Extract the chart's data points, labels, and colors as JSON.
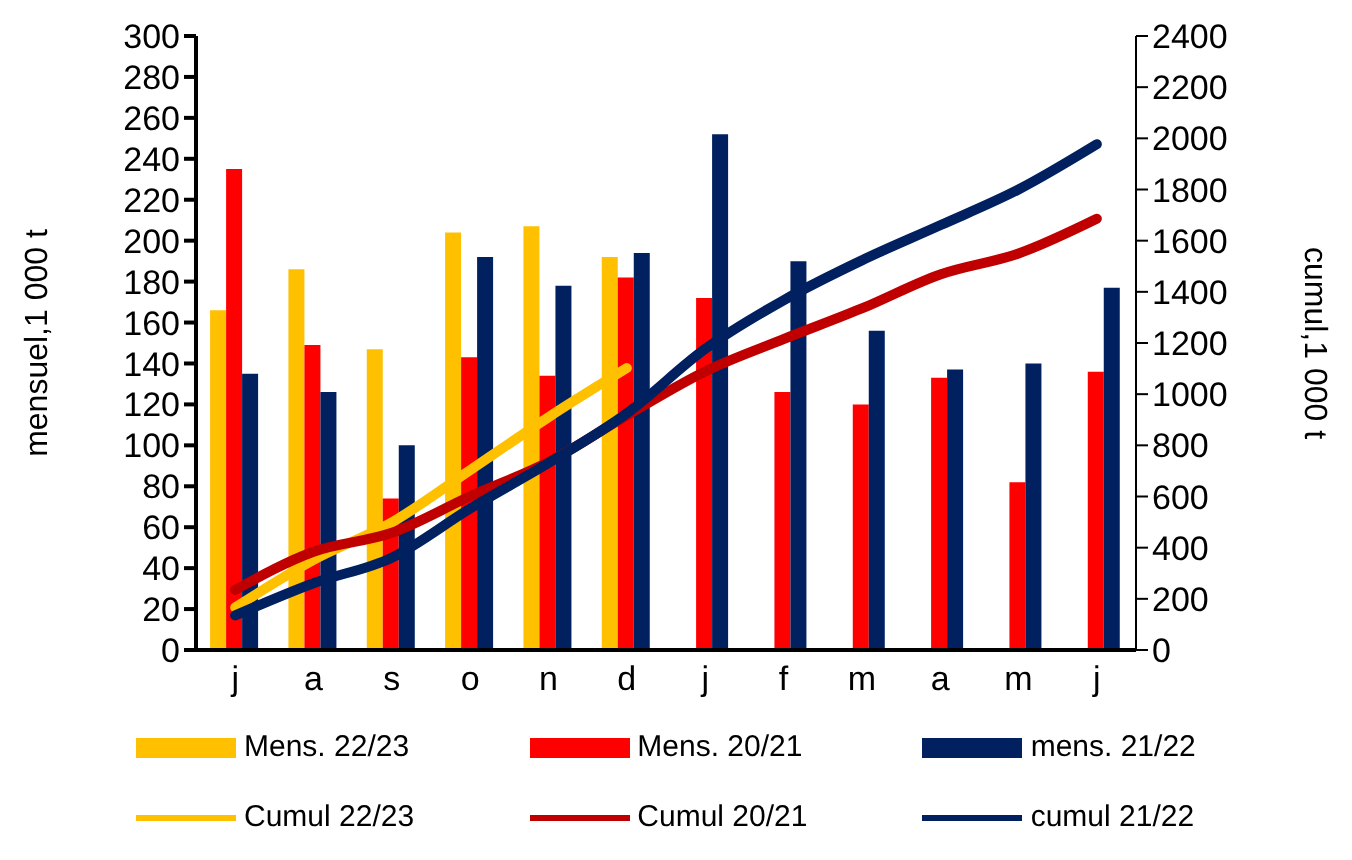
{
  "chart_data": {
    "type": "bar",
    "ylabel": "mensuel,1 000 t",
    "y2label": "cumul,1 000 t",
    "categories": [
      "j",
      "a",
      "s",
      "o",
      "n",
      "d",
      "j",
      "f",
      "m",
      "a",
      "m",
      "j"
    ],
    "series": [
      {
        "name": "Mens. 22/23",
        "color": "#ffc000",
        "values": [
          166,
          186,
          147,
          204,
          207,
          192,
          null,
          null,
          null,
          null,
          null,
          null
        ]
      },
      {
        "name": "Mens. 20/21",
        "color": "#ff0000",
        "values": [
          235,
          149,
          74,
          143,
          134,
          182,
          172,
          126,
          120,
          133,
          82,
          136
        ]
      },
      {
        "name": "mens. 21/22",
        "color": "#002060",
        "values": [
          135,
          126,
          100,
          192,
          178,
          194,
          252,
          190,
          156,
          137,
          140,
          177
        ]
      },
      {
        "name": "Cumul 22/23",
        "type": "line",
        "axis": "y2",
        "color": "#ffc000",
        "values": [
          166,
          352,
          499,
          703,
          910,
          1102,
          null,
          null,
          null,
          null,
          null,
          null
        ]
      },
      {
        "name": "Cumul 20/21",
        "type": "line",
        "axis": "y2",
        "color": "#c00000",
        "values": [
          235,
          384,
          458,
          601,
          735,
          917,
          1089,
          1215,
          1335,
          1468,
          1550,
          1686
        ]
      },
      {
        "name": "cumul 21/22",
        "type": "line",
        "axis": "y2",
        "color": "#002060",
        "values": [
          135,
          261,
          361,
          553,
          731,
          925,
          1177,
          1367,
          1523,
          1660,
          1800,
          1977
        ]
      }
    ],
    "ylim": [
      0,
      300
    ],
    "yticks": [
      0,
      20,
      40,
      60,
      80,
      100,
      120,
      140,
      160,
      180,
      200,
      220,
      240,
      260,
      280,
      300
    ],
    "y2lim": [
      0,
      2400
    ],
    "y2ticks": [
      0,
      200,
      400,
      600,
      800,
      1000,
      1200,
      1400,
      1600,
      1800,
      2000,
      2200,
      2400
    ],
    "grid": false,
    "legend": "bottom",
    "marker": "none",
    "line_style": "solid"
  }
}
